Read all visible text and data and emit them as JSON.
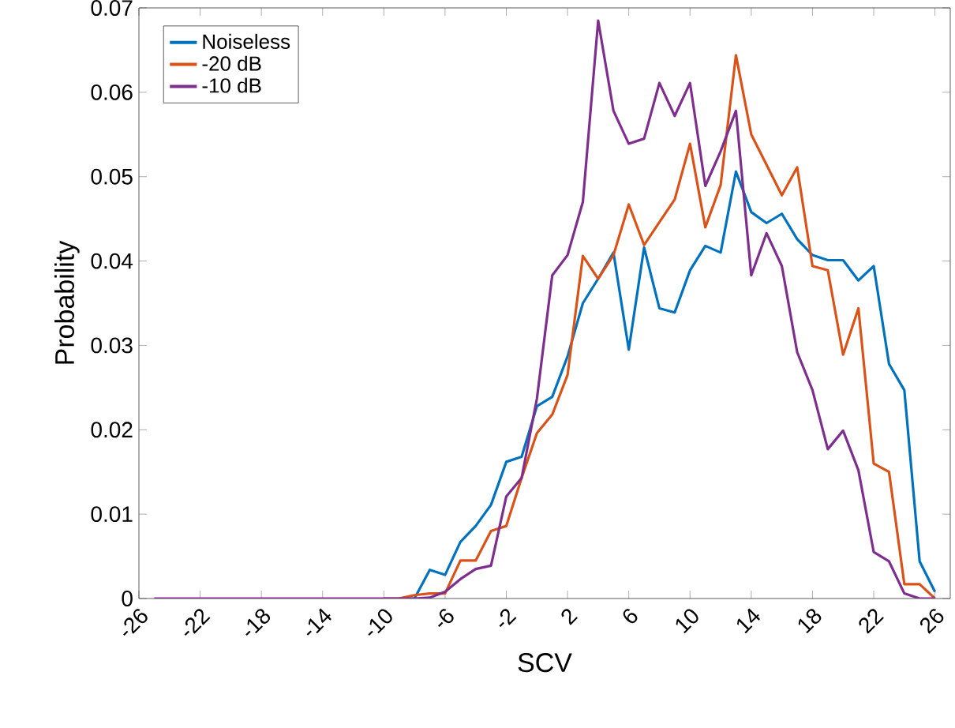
{
  "chart_data": {
    "type": "line",
    "xlabel": "SCV",
    "ylabel": "Probability",
    "x": [
      -25,
      -24,
      -23,
      -22,
      -21,
      -20,
      -19,
      -18,
      -17,
      -16,
      -15,
      -14,
      -13,
      -12,
      -11,
      -10,
      -9,
      -8,
      -7,
      -6,
      -5,
      -4,
      -3,
      -2,
      -1,
      0,
      1,
      2,
      3,
      4,
      5,
      6,
      7,
      8,
      9,
      10,
      11,
      12,
      13,
      14,
      15,
      16,
      17,
      18,
      19,
      20,
      21,
      22,
      23,
      24,
      25,
      26
    ],
    "series": [
      {
        "name": "Noiseless",
        "color": "#0072bd",
        "values": [
          null,
          null,
          null,
          null,
          null,
          null,
          null,
          null,
          null,
          null,
          null,
          null,
          null,
          null,
          null,
          null,
          0,
          0,
          0.0034,
          0.0028,
          0.0067,
          0.0086,
          0.0111,
          0.0162,
          0.0168,
          0.0228,
          0.0239,
          0.0287,
          0.035,
          0.0379,
          0.041,
          0.0295,
          0.0416,
          0.0344,
          0.0339,
          0.0389,
          0.0418,
          0.041,
          0.0506,
          0.0458,
          0.0445,
          0.0456,
          0.0426,
          0.0407,
          0.0401,
          0.0401,
          0.0377,
          0.0394,
          0.0278,
          0.0247,
          0.0044,
          0.0008
        ]
      },
      {
        "name": "-20 dB",
        "color": "#d95319",
        "values": [
          null,
          null,
          null,
          null,
          null,
          null,
          null,
          null,
          null,
          null,
          null,
          null,
          null,
          null,
          null,
          0,
          0,
          0.0004,
          0.0006,
          0.0006,
          0.0045,
          0.0045,
          0.008,
          0.0086,
          0.0143,
          0.0196,
          0.0218,
          0.0265,
          0.0406,
          0.0379,
          0.0407,
          0.0467,
          0.0419,
          0.0446,
          0.0473,
          0.0539,
          0.044,
          0.049,
          0.0644,
          0.055,
          0.0514,
          0.0478,
          0.0511,
          0.0394,
          0.0389,
          0.0289,
          0.0344,
          0.016,
          0.015,
          0.0017,
          0.0017,
          0
        ]
      },
      {
        "name": "-10 dB",
        "color": "#7e2f8e",
        "values": [
          0,
          0,
          0,
          0,
          0,
          0,
          0,
          0,
          0,
          0,
          0,
          0,
          0,
          0,
          0,
          0,
          0,
          0,
          0.0001,
          0.0008,
          0.0023,
          0.0035,
          0.0039,
          0.0121,
          0.0143,
          0.0237,
          0.0383,
          0.0407,
          0.047,
          0.0685,
          0.0578,
          0.0539,
          0.0545,
          0.0611,
          0.0572,
          0.0611,
          0.0489,
          0.053,
          0.0578,
          0.0383,
          0.0433,
          0.0394,
          0.0292,
          0.0247,
          0.0177,
          0.0199,
          0.0152,
          0.0055,
          0.0044,
          0.0006,
          0,
          0
        ]
      }
    ],
    "xlim": [
      -26,
      27
    ],
    "xticks": [
      -26,
      -22,
      -18,
      -14,
      -10,
      -6,
      -2,
      2,
      6,
      10,
      14,
      18,
      22,
      26
    ],
    "ylim": [
      0,
      0.07
    ],
    "yticks": [
      0,
      0.01,
      0.02,
      0.03,
      0.04,
      0.05,
      0.06,
      0.07
    ],
    "legend": "top left"
  }
}
